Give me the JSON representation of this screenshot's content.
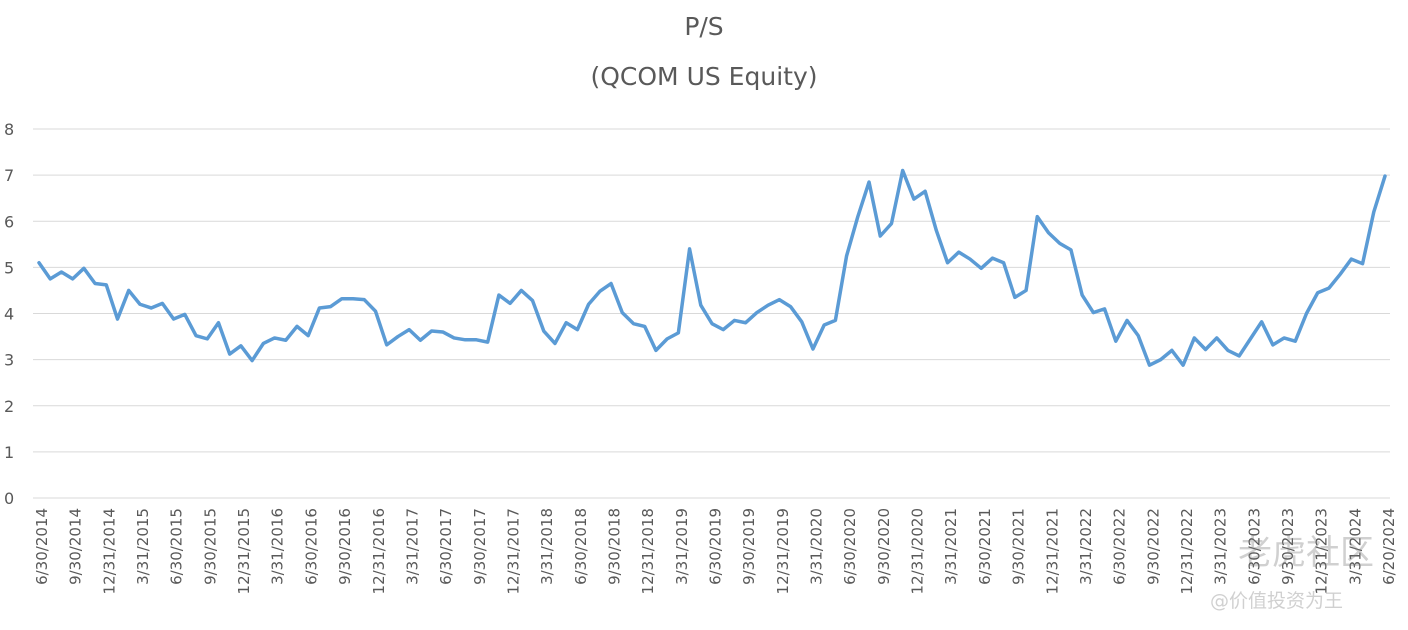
{
  "chart_data": {
    "type": "line",
    "title": "P/S",
    "subtitle": "(QCOM US Equity)",
    "xlabel": "",
    "ylabel": "",
    "ylim": [
      0,
      8
    ],
    "yticks": [
      0,
      1,
      2,
      3,
      4,
      5,
      6,
      7,
      8
    ],
    "grid": true,
    "legend": "none",
    "series_color": "#5b9bd5",
    "xtick_labels": [
      "6/30/2014",
      "9/30/2014",
      "12/31/2014",
      "3/31/2015",
      "6/30/2015",
      "9/30/2015",
      "12/31/2015",
      "3/31/2016",
      "6/30/2016",
      "9/30/2016",
      "12/31/2016",
      "3/31/2017",
      "6/30/2017",
      "9/30/2017",
      "12/31/2017",
      "3/31/2018",
      "6/30/2018",
      "9/30/2018",
      "12/31/2018",
      "3/31/2019",
      "6/30/2019",
      "9/30/2019",
      "12/31/2019",
      "3/31/2020",
      "6/30/2020",
      "9/30/2020",
      "12/31/2020",
      "3/31/2021",
      "6/30/2021",
      "9/30/2021",
      "12/31/2021",
      "3/31/2022",
      "6/30/2022",
      "9/30/2022",
      "12/31/2022",
      "3/31/2023",
      "6/30/2023",
      "9/30/2023",
      "12/31/2023",
      "3/31/2024",
      "6/20/2024"
    ],
    "series": [
      {
        "values": [
          5.1,
          4.75,
          4.9,
          4.75,
          4.98,
          4.65,
          4.62,
          3.88,
          4.5,
          4.2,
          4.12,
          4.22,
          3.88,
          3.98,
          3.52,
          3.45,
          3.8,
          3.12,
          3.3,
          2.98,
          3.35,
          3.47,
          3.42,
          3.72,
          3.52,
          4.12,
          4.15,
          4.32,
          4.32,
          4.3,
          4.05,
          3.32,
          3.5,
          3.65,
          3.42,
          3.62,
          3.6,
          3.47,
          3.43,
          3.43,
          3.38,
          4.4,
          4.22,
          4.5,
          4.28,
          3.62,
          3.35,
          3.8,
          3.65,
          4.2,
          4.48,
          4.65,
          4.02,
          3.78,
          3.72,
          3.2,
          3.45,
          3.58,
          5.4,
          4.18,
          3.78,
          3.65,
          3.85,
          3.8,
          4.02,
          4.18,
          4.3,
          4.15,
          3.82,
          3.23,
          3.75,
          3.85,
          5.25,
          6.1,
          6.85,
          5.68,
          5.95,
          7.1,
          6.48,
          6.65,
          5.8,
          5.1,
          5.33,
          5.18,
          4.98,
          5.2,
          5.1,
          4.35,
          4.5,
          6.1,
          5.75,
          5.52,
          5.38,
          4.4,
          4.02,
          4.1,
          3.4,
          3.85,
          3.52,
          2.88,
          3.0,
          3.2,
          2.88,
          3.47,
          3.22,
          3.47,
          3.2,
          3.08,
          3.45,
          3.82,
          3.32,
          3.47,
          3.4,
          4.0,
          4.45,
          4.55,
          4.85,
          5.18,
          5.08,
          6.2,
          6.98
        ]
      }
    ]
  },
  "watermark": {
    "line1": "老虎社区",
    "line2": "@价值投资为王"
  }
}
